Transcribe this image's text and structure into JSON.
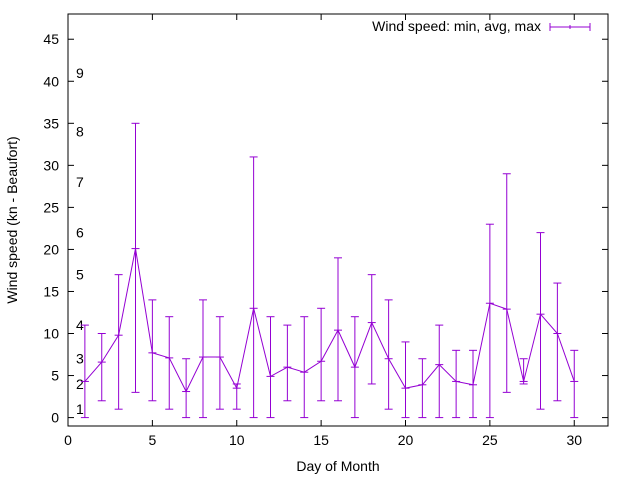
{
  "chart_data": {
    "type": "line",
    "xlabel": "Day of Month",
    "ylabel": "Wind speed (kn - Beaufort)",
    "xlim": [
      0,
      32
    ],
    "ylim": [
      -1,
      48
    ],
    "xticks": [
      0,
      5,
      10,
      15,
      20,
      25,
      30
    ],
    "yticks": [
      0,
      5,
      10,
      15,
      20,
      25,
      30,
      35,
      40,
      45
    ],
    "grid": false,
    "legend_position": "top-right",
    "colors": {
      "series": "#9400d3",
      "axis": "#000000"
    },
    "beaufort_labels": [
      {
        "label": "1",
        "y": 1
      },
      {
        "label": "2",
        "y": 4
      },
      {
        "label": "3",
        "y": 7
      },
      {
        "label": "4",
        "y": 11
      },
      {
        "label": "5",
        "y": 17
      },
      {
        "label": "6",
        "y": 22
      },
      {
        "label": "7",
        "y": 28
      },
      {
        "label": "8",
        "y": 34
      },
      {
        "label": "9",
        "y": 41
      }
    ],
    "series": [
      {
        "name": "Wind speed: min, avg, max",
        "x": [
          1,
          2,
          3,
          4,
          5,
          6,
          7,
          8,
          9,
          10,
          11,
          12,
          13,
          14,
          15,
          16,
          17,
          18,
          19,
          20,
          21,
          22,
          23,
          24,
          25,
          26,
          27,
          28,
          29,
          30
        ],
        "min": [
          0,
          2,
          1,
          3,
          2,
          1,
          0,
          0,
          1,
          1,
          0,
          0,
          2,
          0,
          2,
          2,
          0,
          4,
          1,
          0,
          0,
          0,
          0,
          0,
          0,
          3,
          4,
          1,
          2,
          0
        ],
        "avg": [
          4.3,
          6.6,
          9.8,
          20.1,
          7.7,
          7.1,
          3.1,
          7.2,
          7.2,
          3.5,
          13.0,
          4.9,
          6.0,
          5.4,
          6.7,
          10.4,
          6.0,
          11.3,
          7.0,
          3.5,
          3.9,
          6.3,
          4.3,
          3.9,
          13.6,
          12.9,
          4.3,
          12.3,
          10.0,
          4.3
        ],
        "max": [
          11,
          10,
          17,
          35,
          14,
          12,
          7,
          14,
          12,
          4,
          31,
          12,
          11,
          12,
          13,
          19,
          12,
          17,
          14,
          9,
          7,
          11,
          8,
          8,
          23,
          29,
          7,
          22,
          16,
          8
        ]
      }
    ]
  }
}
